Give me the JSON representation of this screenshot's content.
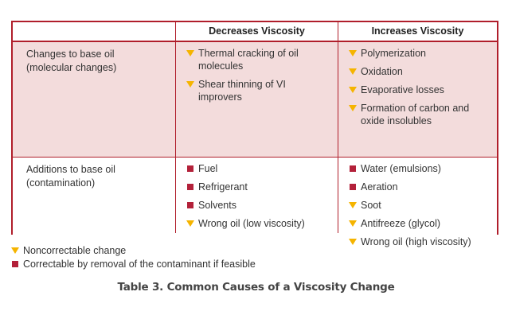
{
  "table": {
    "headers": [
      "Decreases Viscosity",
      "Increases Viscosity"
    ],
    "rows": [
      {
        "label": [
          "Changes to base oil",
          "(molecular changes)"
        ],
        "decreases": [
          {
            "marker": "triangle",
            "text": "Thermal cracking of oil molecules"
          },
          {
            "marker": "triangle",
            "text": "Shear thinning of VI improvers"
          }
        ],
        "increases": [
          {
            "marker": "triangle",
            "text": "Polymerization"
          },
          {
            "marker": "triangle",
            "text": "Oxidation"
          },
          {
            "marker": "triangle",
            "text": "Evaporative losses"
          },
          {
            "marker": "triangle",
            "text": "Formation of carbon and oxide insolubles"
          }
        ]
      },
      {
        "label": [
          "Additions to base oil",
          "(contamination)"
        ],
        "decreases": [
          {
            "marker": "square",
            "text": "Fuel"
          },
          {
            "marker": "square",
            "text": "Refrigerant"
          },
          {
            "marker": "square",
            "text": "Solvents"
          },
          {
            "marker": "triangle",
            "text": "Wrong oil (low viscosity)"
          }
        ],
        "increases": [
          {
            "marker": "square",
            "text": "Water (emulsions)"
          },
          {
            "marker": "square",
            "text": "Aeration"
          },
          {
            "marker": "triangle",
            "text": "Soot"
          },
          {
            "marker": "triangle",
            "text": "Antifreeze (glycol)"
          },
          {
            "marker": "triangle",
            "text": "Wrong oil (high viscosity)"
          }
        ]
      }
    ]
  },
  "legend": [
    {
      "marker": "triangle",
      "text": "Noncorrectable change"
    },
    {
      "marker": "square",
      "text": "Correctable by removal of the contaminant if feasible"
    }
  ],
  "caption": "Table 3. Common Causes of a Viscosity Change",
  "colors": {
    "border": "#b01e2b",
    "shaded_row": "#f3dcdc",
    "triangle_marker": "#f5b400",
    "square_marker": "#b3213a"
  }
}
